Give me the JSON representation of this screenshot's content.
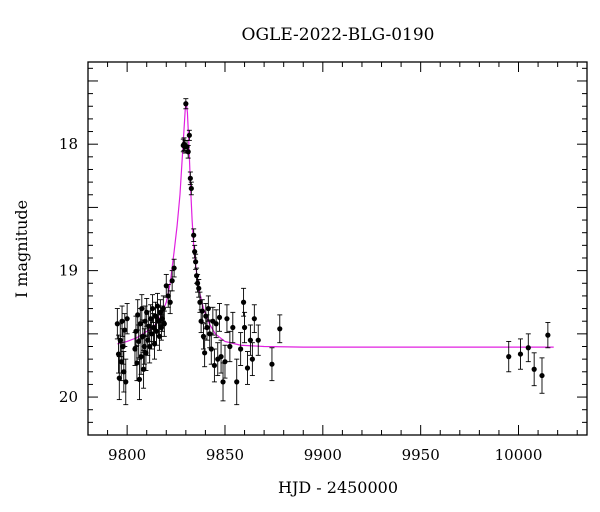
{
  "chart_data": {
    "type": "scatter",
    "title": "OGLE-2022-BLG-0190",
    "xlabel": "HJD - 2450000",
    "ylabel": "I magnitude",
    "xlim": [
      9780,
      10035
    ],
    "ylim": [
      20.3,
      17.35
    ],
    "y_inverted": true,
    "grid": false,
    "x_ticks": [
      9800,
      9850,
      9900,
      9950,
      10000
    ],
    "y_ticks": [
      18,
      19,
      20
    ],
    "series": [
      {
        "kind": "points",
        "color": "#000000",
        "points": [
          [
            9795.0,
            19.42,
            0.12
          ],
          [
            9795.6,
            19.66,
            0.15
          ],
          [
            9796.0,
            19.85,
            0.17
          ],
          [
            9796.5,
            19.55,
            0.13
          ],
          [
            9797.0,
            19.72,
            0.15
          ],
          [
            9797.4,
            19.4,
            0.12
          ],
          [
            9797.9,
            19.6,
            0.14
          ],
          [
            9798.3,
            19.8,
            0.16
          ],
          [
            9798.8,
            19.47,
            0.13
          ],
          [
            9799.3,
            19.88,
            0.18
          ],
          [
            9800.0,
            19.38,
            0.12
          ],
          [
            9804.0,
            19.62,
            0.13
          ],
          [
            9804.5,
            19.48,
            0.12
          ],
          [
            9805.0,
            19.73,
            0.14
          ],
          [
            9805.4,
            19.35,
            0.12
          ],
          [
            9805.9,
            19.56,
            0.13
          ],
          [
            9806.3,
            19.86,
            0.16
          ],
          [
            9806.7,
            19.42,
            0.12
          ],
          [
            9807.1,
            19.68,
            0.14
          ],
          [
            9807.5,
            19.3,
            0.11
          ],
          [
            9808.0,
            19.52,
            0.13
          ],
          [
            9808.4,
            19.78,
            0.15
          ],
          [
            9808.8,
            19.6,
            0.14
          ],
          [
            9809.2,
            19.4,
            0.12
          ],
          [
            9809.6,
            19.65,
            0.14
          ],
          [
            9810.0,
            19.33,
            0.11
          ],
          [
            9810.5,
            19.55,
            0.12
          ],
          [
            9811.0,
            19.44,
            0.12
          ],
          [
            9811.5,
            19.6,
            0.13
          ],
          [
            9812.0,
            19.38,
            0.11
          ],
          [
            9812.5,
            19.5,
            0.12
          ],
          [
            9813.0,
            19.3,
            0.11
          ],
          [
            9813.5,
            19.45,
            0.11
          ],
          [
            9814.0,
            19.58,
            0.12
          ],
          [
            9814.5,
            19.36,
            0.11
          ],
          [
            9815.0,
            19.48,
            0.11
          ],
          [
            9815.5,
            19.28,
            0.1
          ],
          [
            9816.0,
            19.4,
            0.11
          ],
          [
            9816.5,
            19.52,
            0.11
          ],
          [
            9817.0,
            19.33,
            0.1
          ],
          [
            9817.5,
            19.45,
            0.1
          ],
          [
            9818.0,
            19.38,
            0.1
          ],
          [
            9818.5,
            19.3,
            0.1
          ],
          [
            9819.0,
            19.42,
            0.1
          ],
          [
            9820.0,
            19.12,
            0.09
          ],
          [
            9821.0,
            19.2,
            0.09
          ],
          [
            9822.0,
            19.25,
            0.09
          ],
          [
            9823.0,
            19.08,
            0.08
          ],
          [
            9824.0,
            18.98,
            0.07
          ],
          [
            9828.7,
            18.01,
            0.05
          ],
          [
            9829.1,
            18.0,
            0.05
          ],
          [
            9829.6,
            18.02,
            0.05
          ],
          [
            9830.0,
            17.68,
            0.04
          ],
          [
            9830.6,
            18.02,
            0.05
          ],
          [
            9831.2,
            18.06,
            0.05
          ],
          [
            9831.8,
            17.93,
            0.04
          ],
          [
            9832.3,
            18.27,
            0.05
          ],
          [
            9832.8,
            18.35,
            0.05
          ],
          [
            9834.0,
            18.72,
            0.05
          ],
          [
            9834.5,
            18.85,
            0.05
          ],
          [
            9835.0,
            18.93,
            0.06
          ],
          [
            9835.5,
            19.04,
            0.06
          ],
          [
            9836.0,
            19.1,
            0.07
          ],
          [
            9836.6,
            19.14,
            0.07
          ],
          [
            9837.2,
            19.25,
            0.08
          ],
          [
            9837.8,
            19.4,
            0.09
          ],
          [
            9838.4,
            19.32,
            0.09
          ],
          [
            9839.0,
            19.52,
            0.1
          ],
          [
            9839.6,
            19.65,
            0.11
          ],
          [
            9840.2,
            19.36,
            0.1
          ],
          [
            9840.8,
            19.45,
            0.1
          ],
          [
            9841.5,
            19.3,
            0.1
          ],
          [
            9842.2,
            19.5,
            0.11
          ],
          [
            9843.0,
            19.62,
            0.12
          ],
          [
            9843.8,
            19.4,
            0.11
          ],
          [
            9844.6,
            19.75,
            0.13
          ],
          [
            9845.5,
            19.42,
            0.11
          ],
          [
            9846.3,
            19.7,
            0.13
          ],
          [
            9847.2,
            19.37,
            0.11
          ],
          [
            9848.0,
            19.68,
            0.13
          ],
          [
            9849.0,
            19.88,
            0.15
          ],
          [
            9850.0,
            19.72,
            0.13
          ],
          [
            9851.0,
            19.38,
            0.11
          ],
          [
            9852.5,
            19.6,
            0.12
          ],
          [
            9854.0,
            19.45,
            0.12
          ],
          [
            9856.0,
            19.88,
            0.18
          ],
          [
            9858.0,
            19.62,
            0.13
          ],
          [
            9859.5,
            19.25,
            0.11
          ],
          [
            9860.0,
            19.45,
            0.12
          ],
          [
            9861.5,
            19.77,
            0.13
          ],
          [
            9863.0,
            19.55,
            0.12
          ],
          [
            9864.0,
            19.7,
            0.13
          ],
          [
            9865.0,
            19.38,
            0.11
          ],
          [
            9867.0,
            19.55,
            0.12
          ],
          [
            9874.0,
            19.74,
            0.13
          ],
          [
            9878.0,
            19.46,
            0.11
          ],
          [
            9995.0,
            19.68,
            0.12
          ],
          [
            10001.0,
            19.66,
            0.12
          ],
          [
            10005.0,
            19.61,
            0.11
          ],
          [
            10008.0,
            19.78,
            0.13
          ],
          [
            10012.0,
            19.83,
            0.14
          ],
          [
            10015.0,
            19.51,
            0.1
          ]
        ]
      },
      {
        "kind": "model",
        "color": "#e020e0",
        "x": [
          9795,
          9800,
          9805,
          9810,
          9813,
          9816,
          9818,
          9820,
          9822,
          9824,
          9825.5,
          9827,
          9828,
          9829,
          9829.7,
          9830.2,
          9830.8,
          9831.5,
          9832.3,
          9833.2,
          9834.2,
          9835.5,
          9837,
          9839,
          9842,
          9845,
          9850,
          9858,
          9870,
          9890,
          9930,
          9980,
          10018
        ],
        "y": [
          19.58,
          19.56,
          19.53,
          19.48,
          19.45,
          19.4,
          19.33,
          19.25,
          19.1,
          18.85,
          18.65,
          18.4,
          18.15,
          17.9,
          17.72,
          17.66,
          17.75,
          17.98,
          18.3,
          18.6,
          18.85,
          19.02,
          19.17,
          19.3,
          19.42,
          19.5,
          19.56,
          19.59,
          19.6,
          19.605,
          19.605,
          19.605,
          19.605
        ]
      }
    ]
  }
}
